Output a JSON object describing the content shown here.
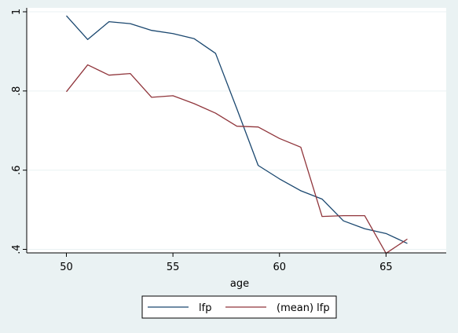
{
  "chart_data": {
    "type": "line",
    "xlabel": "age",
    "ylabel": "",
    "xlim": [
      50,
      66
    ],
    "ylim": [
      0.4,
      1.0
    ],
    "x_ticks": [
      50,
      55,
      60,
      65
    ],
    "x_tick_labels": [
      "50",
      "55",
      "60",
      "65"
    ],
    "y_ticks": [
      0.4,
      0.6,
      0.8,
      1.0
    ],
    "y_tick_labels": [
      ".4",
      ".6",
      ".8",
      "1"
    ],
    "grid": true,
    "legend_position": "bottom",
    "x": [
      50,
      51,
      52,
      53,
      54,
      55,
      56,
      57,
      58,
      59,
      60,
      61,
      62,
      63,
      64,
      65,
      66
    ],
    "series": [
      {
        "name": "lfp",
        "color": "#1a476f",
        "values": [
          0.99,
          0.93,
          0.975,
          0.97,
          0.953,
          0.945,
          0.932,
          0.895,
          0.755,
          0.612,
          0.578,
          0.548,
          0.527,
          0.472,
          0.452,
          0.44,
          0.415
        ]
      },
      {
        "name": "(mean) lfp",
        "color": "#90353b",
        "values": [
          0.798,
          0.866,
          0.84,
          0.844,
          0.784,
          0.788,
          0.768,
          0.744,
          0.711,
          0.709,
          0.68,
          0.658,
          0.483,
          0.485,
          0.485,
          0.39,
          0.426
        ]
      }
    ]
  },
  "colors": {
    "background": "#eaf2f3",
    "plot_background": "#ffffff",
    "grid": "#eaf2f3"
  }
}
